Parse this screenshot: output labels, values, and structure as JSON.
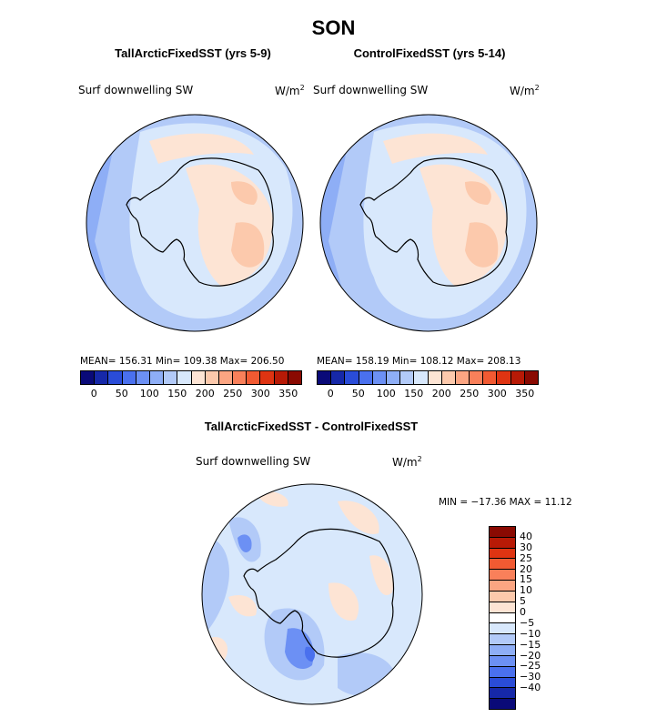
{
  "season": "SON",
  "panels": {
    "left": {
      "title": "TallArcticFixedSST (yrs 5-9)",
      "variable": "Surf downwelling SW",
      "units": "W/m",
      "units_sup": "2",
      "stats": "MEAN= 156.31   Min= 109.38   Max= 206.50"
    },
    "right": {
      "title": "ControlFixedSST (yrs 5-14)",
      "variable": "Surf downwelling SW",
      "units": "W/m",
      "units_sup": "2",
      "stats": "MEAN= 158.19   Min= 108.12   Max= 208.13"
    },
    "diff": {
      "title": "TallArcticFixedSST - ControlFixedSST",
      "variable": "Surf downwelling SW",
      "units": "W/m",
      "units_sup": "2",
      "stats": "MIN = −17.36 MAX =   11.12"
    }
  },
  "colorbar_abs": {
    "colors": [
      "#0a0a78",
      "#1628a8",
      "#2a4cd8",
      "#4a70ee",
      "#6c90f4",
      "#8eaef6",
      "#b2caf8",
      "#d8e8fc",
      "#fde4d4",
      "#fcc9ac",
      "#fba582",
      "#f9805a",
      "#f25a32",
      "#df3412",
      "#b81a06",
      "#8a0a02"
    ],
    "ticks": [
      "0",
      "50",
      "100",
      "150",
      "200",
      "250",
      "300",
      "350"
    ]
  },
  "colorbar_diff": {
    "colors_top_to_bottom": [
      "#8a0a02",
      "#b81a06",
      "#df3412",
      "#f25a32",
      "#f9805a",
      "#fba582",
      "#fcc9ac",
      "#fde4d4",
      "#ffffff",
      "#d8e8fc",
      "#b2caf8",
      "#8eaef6",
      "#6c90f4",
      "#4a70ee",
      "#2a4cd8",
      "#1628a8",
      "#0a0a78"
    ],
    "ticks_top_to_bottom": [
      "40",
      "30",
      "25",
      "20",
      "15",
      "10",
      "5",
      "0",
      "−5",
      "−10",
      "−15",
      "−20",
      "−25",
      "−30",
      "−40"
    ]
  },
  "map_colors": {
    "ocean_low": "#b2caf8",
    "ocean_mid": "#d8e8fc",
    "ocean_deep": "#8eaef6",
    "land_warm": "#fde4d4",
    "land_warmer": "#fcc9ac",
    "diff_neutral": "#d8e8fc",
    "diff_neg": "#b2caf8",
    "diff_neg_strong": "#6c90f4",
    "diff_pos": "#fde4d4"
  }
}
